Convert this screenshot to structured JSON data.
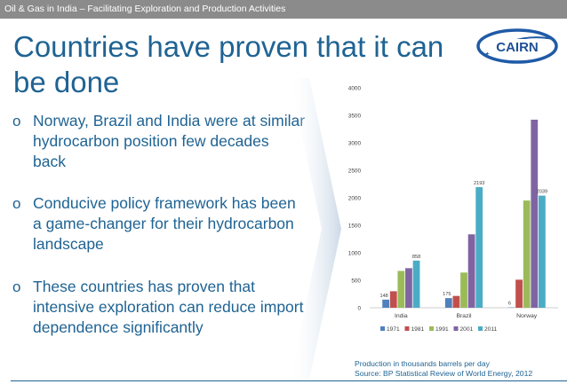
{
  "header": {
    "title": "Oil & Gas in India – Facilitating Exploration and Production Activities"
  },
  "slide": {
    "title_line1": "Countries have proven that it can",
    "title_line2": "be done",
    "bullet_marker": "o",
    "bullets": [
      "Norway, Brazil and India were at similar hydrocarbon position few decades back",
      "Conducive policy framework has been a game-changer for their hydrocarbon landscape",
      "These countries has proven that intensive exploration can reduce import dependence significantly"
    ]
  },
  "logo": {
    "text": "CAIRN",
    "colors": {
      "ring": "#1f5aa6",
      "text": "#1f4f96"
    }
  },
  "source": {
    "line1": "Production in thousands barrels per day",
    "line2": "Source: BP Statistical Review of World Energy, 2012"
  },
  "colors": {
    "accent": "#1f6393",
    "header_bg": "#8b8b8b"
  },
  "chart_data": {
    "type": "bar",
    "categories": [
      "India",
      "Brazil",
      "Norway"
    ],
    "series": [
      {
        "name": "1971",
        "color": "#4f81bd",
        "values": [
          148,
          175,
          6
        ]
      },
      {
        "name": "1981",
        "color": "#c0504d",
        "values": [
          300,
          215,
          510
        ]
      },
      {
        "name": "1991",
        "color": "#9bbb59",
        "values": [
          670,
          640,
          1950
        ]
      },
      {
        "name": "2001",
        "color": "#8064a2",
        "values": [
          720,
          1335,
          3420
        ]
      },
      {
        "name": "2011",
        "color": "#4bacc6",
        "values": [
          858,
          2193,
          2039
        ]
      }
    ],
    "data_labels": [
      {
        "series": 0,
        "category": 0,
        "text": "148"
      },
      {
        "series": 0,
        "category": 1,
        "text": "175"
      },
      {
        "series": 0,
        "category": 2,
        "text": "6"
      },
      {
        "series": 4,
        "category": 0,
        "text": "858"
      },
      {
        "series": 4,
        "category": 1,
        "text": "2193"
      },
      {
        "series": 4,
        "category": 2,
        "text": "2039"
      }
    ],
    "ylim": [
      0,
      4000
    ],
    "yticks": [
      "0",
      "500",
      "1000",
      "1500",
      "2000",
      "2500",
      "3000",
      "3500",
      "4000"
    ],
    "yticks_values": [
      0,
      500,
      1000,
      1500,
      2000,
      2500,
      3000,
      3500,
      4000
    ],
    "grid": false,
    "legend_position": "bottom"
  }
}
